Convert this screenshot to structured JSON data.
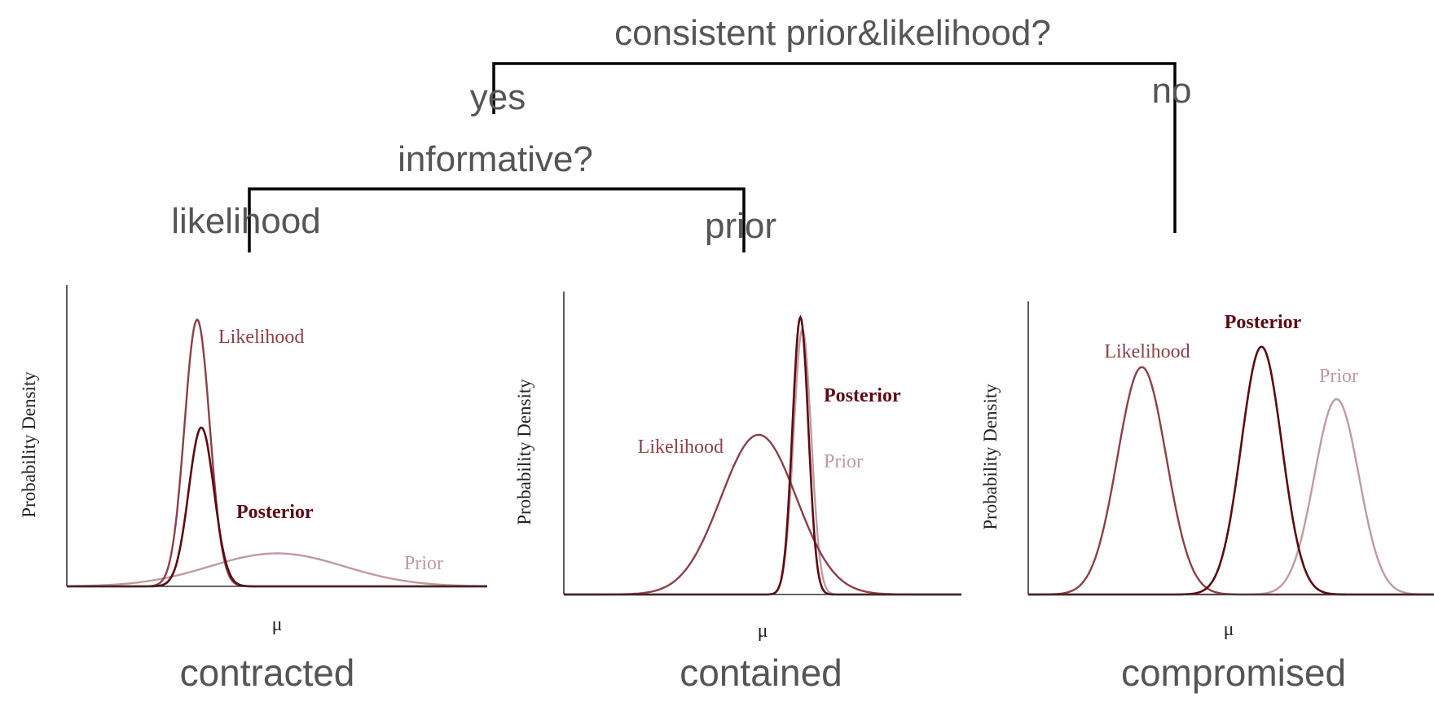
{
  "tree": {
    "root_question": "consistent prior&likelihood?",
    "yes_label": "yes",
    "no_label": "no",
    "sub_question": "informative?",
    "left_label": "likelihood",
    "right_label": "prior"
  },
  "colors": {
    "tree_line": "#000000",
    "tree_text": "#555555",
    "likelihood": "#8a4048",
    "posterior": "#5c0a12",
    "prior": "#c09a9e",
    "axis": "#333333"
  },
  "chart_data": [
    {
      "type": "line",
      "caption": "contracted",
      "ylabel": "Probability Density",
      "xlabel": "μ",
      "grid": false,
      "xlim": [
        0,
        10
      ],
      "ylim": [
        0,
        1
      ],
      "series": [
        {
          "name": "Likelihood",
          "role": "likelihood",
          "mu": 3.1,
          "sigma": 0.3,
          "peak": 0.89
        },
        {
          "name": "Posterior",
          "role": "posterior",
          "mu": 3.2,
          "sigma": 0.3,
          "peak": 0.53
        },
        {
          "name": "Prior",
          "role": "prior",
          "mu": 5.0,
          "sigma": 1.6,
          "peak": 0.11
        }
      ]
    },
    {
      "type": "line",
      "caption": "contained",
      "ylabel": "Probability Density",
      "xlabel": "μ",
      "grid": false,
      "xlim": [
        0,
        10
      ],
      "ylim": [
        0,
        1
      ],
      "series": [
        {
          "name": "Likelihood",
          "role": "likelihood",
          "mu": 4.9,
          "sigma": 0.95,
          "peak": 0.53
        },
        {
          "name": "Posterior",
          "role": "posterior",
          "mu": 5.95,
          "sigma": 0.2,
          "peak": 0.92
        },
        {
          "name": "Prior",
          "role": "prior",
          "mu": 6.0,
          "sigma": 0.22,
          "peak": 0.88
        }
      ]
    },
    {
      "type": "line",
      "caption": "compromised",
      "ylabel": "Probability Density",
      "xlabel": "μ",
      "grid": false,
      "xlim": [
        0,
        10
      ],
      "ylim": [
        0,
        1
      ],
      "series": [
        {
          "name": "Likelihood",
          "role": "likelihood",
          "mu": 2.8,
          "sigma": 0.6,
          "peak": 0.78
        },
        {
          "name": "Posterior",
          "role": "posterior",
          "mu": 5.75,
          "sigma": 0.5,
          "peak": 0.85
        },
        {
          "name": "Prior",
          "role": "prior",
          "mu": 7.6,
          "sigma": 0.55,
          "peak": 0.67
        }
      ]
    }
  ]
}
